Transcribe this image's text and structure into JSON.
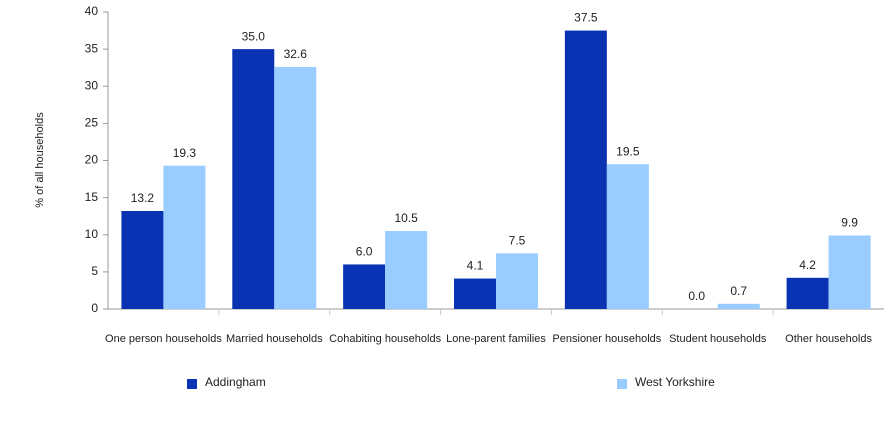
{
  "chart_data": {
    "type": "bar",
    "y_label": "% of all households",
    "categories": [
      "One person households",
      "Married households",
      "Cohabiting households",
      "Lone-parent families",
      "Pensioner households",
      "Student households",
      "Other households"
    ],
    "series": [
      {
        "name": "Addingham",
        "color": "#0a33b3",
        "values": [
          13.2,
          35.0,
          6.0,
          4.1,
          37.5,
          0.0,
          4.2
        ],
        "value_labels": [
          "13.2",
          "35.0",
          "6.0",
          "4.1",
          "37.5",
          "0.0",
          "4.2"
        ]
      },
      {
        "name": "West Yorkshire",
        "color": "#99ccff",
        "values": [
          19.3,
          32.6,
          10.5,
          7.5,
          19.5,
          0.7,
          9.9
        ],
        "value_labels": [
          "19.3",
          "32.6",
          "10.5",
          "7.5",
          "19.5",
          "0.7",
          "9.9"
        ]
      }
    ],
    "ylim": [
      0,
      40
    ],
    "yticks": [
      0,
      5,
      10,
      15,
      20,
      25,
      30,
      35,
      40
    ],
    "grid": false
  }
}
